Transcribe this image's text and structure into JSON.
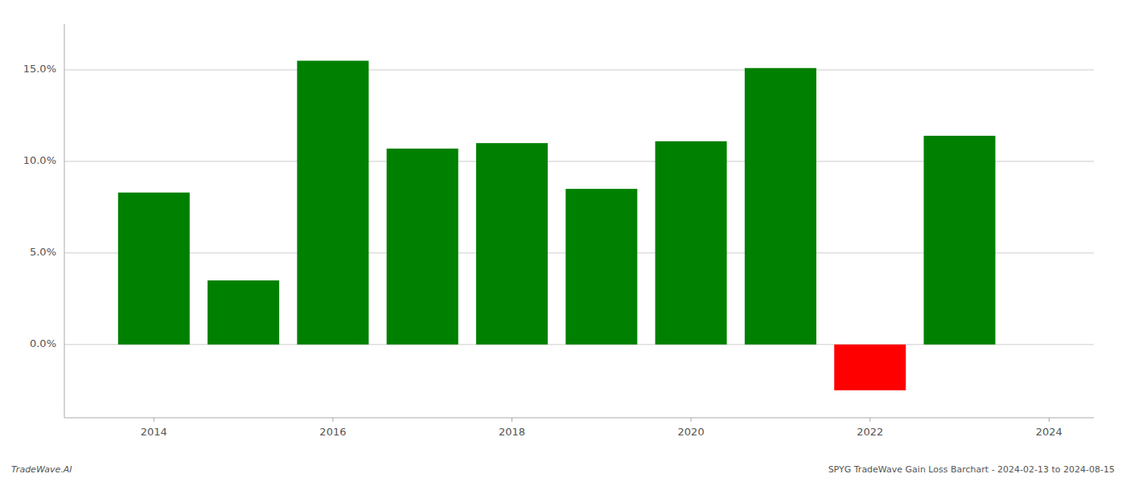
{
  "chart_data": {
    "type": "bar",
    "x": [
      2014,
      2015,
      2016,
      2017,
      2018,
      2019,
      2020,
      2021,
      2022,
      2023
    ],
    "values": [
      0.083,
      0.035,
      0.155,
      0.107,
      0.11,
      0.085,
      0.111,
      0.151,
      -0.025,
      0.114
    ],
    "colors": [
      "#008000",
      "#008000",
      "#008000",
      "#008000",
      "#008000",
      "#008000",
      "#008000",
      "#008000",
      "#ff0000",
      "#008000"
    ],
    "xlim": [
      2013.0,
      2024.5
    ],
    "ylim": [
      -0.04,
      0.175
    ],
    "xticks": [
      2014,
      2016,
      2018,
      2020,
      2022,
      2024
    ],
    "yticks": [
      {
        "value": 0.0,
        "label": "0.0%"
      },
      {
        "value": 0.05,
        "label": "5.0%"
      },
      {
        "value": 0.1,
        "label": "10.0%"
      },
      {
        "value": 0.15,
        "label": "15.0%"
      }
    ],
    "grid": true,
    "annotations": [
      "TradeWave.AI",
      "SPYG TradeWave Gain Loss Barchart - 2024-02-13 to 2024-08-15"
    ]
  }
}
